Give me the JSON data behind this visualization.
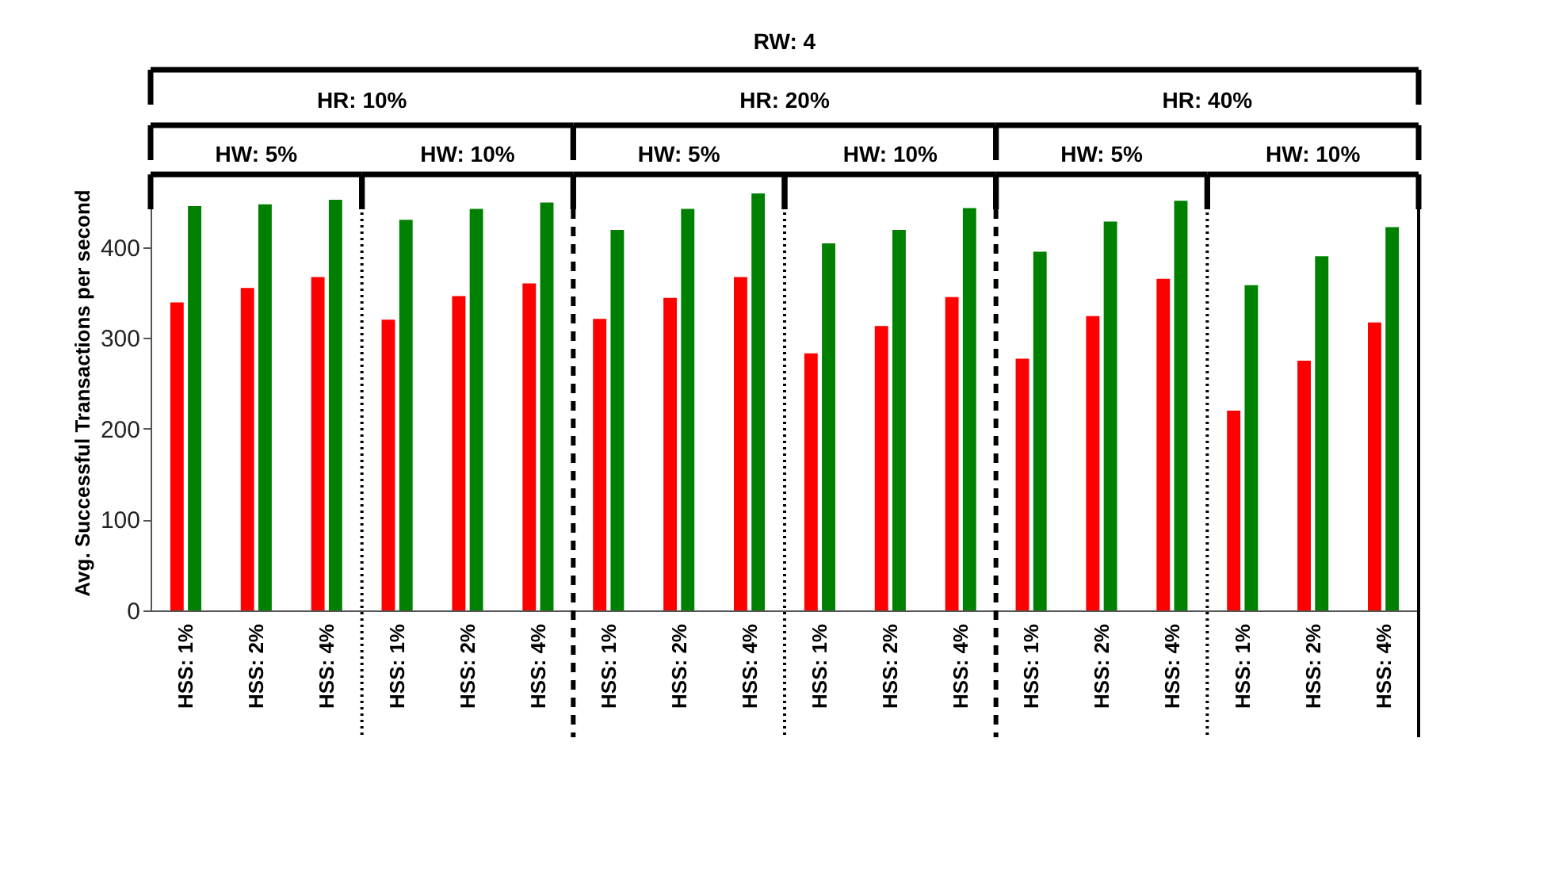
{
  "chart_data": {
    "type": "bar",
    "ylabel": "Avg. Successful Transactions per second",
    "categories": [
      "HSS: 1%",
      "HSS: 2%",
      "HSS: 4%",
      "HSS: 1%",
      "HSS: 2%",
      "HSS: 4%",
      "HSS: 1%",
      "HSS: 2%",
      "HSS: 4%",
      "HSS: 1%",
      "HSS: 2%",
      "HSS: 4%",
      "HSS: 1%",
      "HSS: 2%",
      "HSS: 4%",
      "HSS: 1%",
      "HSS: 2%",
      "HSS: 4%"
    ],
    "series": [
      {
        "color": "#ff0000",
        "values": [
          339,
          355,
          367,
          320,
          346,
          360,
          321,
          344,
          367,
          283,
          313,
          345,
          277,
          324,
          365,
          220,
          275,
          317
        ]
      },
      {
        "color": "#008000",
        "values": [
          445,
          447,
          452,
          430,
          442,
          449,
          419,
          442,
          459,
          404,
          419,
          443,
          395,
          428,
          451,
          358,
          390,
          422
        ]
      }
    ],
    "ylim": [
      0,
      480
    ],
    "yticks": [
      0,
      100,
      200,
      300,
      400
    ],
    "grid": false,
    "annotations": [
      "RW: 4",
      "HR: 10%",
      "HR: 20%",
      "HR: 40%",
      "HW: 5%",
      "HW: 10%",
      "HW: 5%",
      "HW: 10%",
      "HW: 5%",
      "HW: 10%"
    ]
  }
}
